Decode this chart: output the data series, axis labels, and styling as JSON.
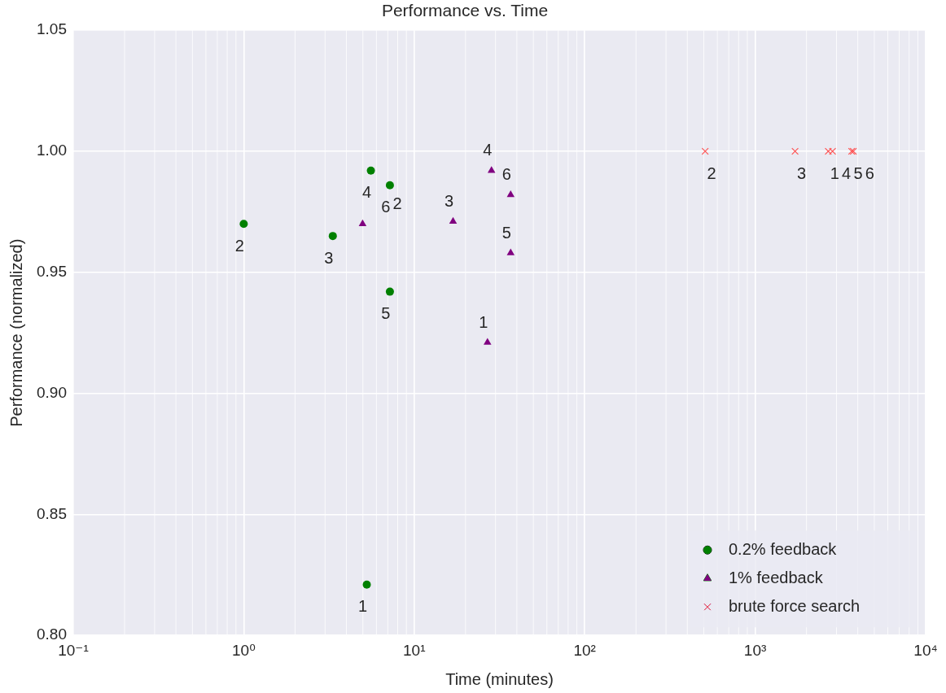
{
  "chart_data": {
    "type": "scatter",
    "title": "Performance vs. Time",
    "xlabel": "Time (minutes)",
    "ylabel": "Performance (normalized)",
    "log": "x",
    "grid": true,
    "legend": "bottom right",
    "xlim": [
      0.1,
      10000
    ],
    "xticks": [
      {
        "value": 0.1,
        "label": "10⁻¹"
      },
      {
        "value": 1,
        "label": "10⁰"
      },
      {
        "value": 10,
        "label": "10¹"
      },
      {
        "value": 100,
        "label": "10²"
      },
      {
        "value": 1000,
        "label": "10³"
      },
      {
        "value": 10000,
        "label": "10⁴"
      }
    ],
    "ylim": [
      0.8,
      1.05
    ],
    "yticks": [
      {
        "value": 0.8,
        "label": "0.80"
      },
      {
        "value": 0.85,
        "label": "0.85"
      },
      {
        "value": 0.9,
        "label": "0.90"
      },
      {
        "value": 0.95,
        "label": "0.95"
      },
      {
        "value": 1,
        "label": "1.00"
      },
      {
        "value": 1.05,
        "label": "1.05"
      }
    ],
    "series": [
      {
        "name": "0.2% feedback",
        "color": "#008000",
        "marker": "circle",
        "x": [
          5.27,
          1.0,
          3.33,
          5.57,
          7.2,
          7.2
        ],
        "values": [
          0.821,
          0.97,
          0.965,
          0.992,
          0.942,
          0.986
        ]
      },
      {
        "name": "1% feedback",
        "color": "#800080",
        "marker": "triangle",
        "x": [
          26.9,
          4.98,
          16.9,
          28.4,
          36.8,
          36.8
        ],
        "values": [
          0.921,
          0.97,
          0.971,
          0.992,
          0.958,
          0.982
        ]
      },
      {
        "name": "brute force search",
        "color": "#ff5555",
        "marker": "cross",
        "x": [
          2685,
          509,
          1714,
          2843,
          3680,
          3765
        ],
        "values": [
          1.0,
          1.0,
          1.0,
          1.0,
          1.0,
          1.0
        ]
      }
    ],
    "annotations": [
      {
        "text": "1",
        "x": 5.27,
        "y": 0.821
      },
      {
        "text": "2",
        "x": 1.0,
        "y": 0.97
      },
      {
        "text": "3",
        "x": 3.33,
        "y": 0.965
      },
      {
        "text": "4",
        "x": 5.57,
        "y": 0.992
      },
      {
        "text": "5",
        "x": 7.2,
        "y": 0.942
      },
      {
        "text": "6",
        "x": 7.2,
        "y": 0.986
      },
      {
        "text": "1",
        "x": 26.9,
        "y": 0.921
      },
      {
        "text": "2",
        "x": 4.98,
        "y": 0.97
      },
      {
        "text": "3",
        "x": 16.9,
        "y": 0.971
      },
      {
        "text": "4",
        "x": 28.4,
        "y": 0.992
      },
      {
        "text": "5",
        "x": 36.8,
        "y": 0.958
      },
      {
        "text": "6",
        "x": 36.8,
        "y": 0.982
      },
      {
        "text": "1",
        "x": 2685,
        "y": 1.0
      },
      {
        "text": "2",
        "x": 509,
        "y": 1.0
      },
      {
        "text": "3",
        "x": 1714,
        "y": 1.0
      },
      {
        "text": "4",
        "x": 2843,
        "y": 1.0
      },
      {
        "text": "5",
        "x": 3680,
        "y": 1.0
      },
      {
        "text": "6",
        "x": 3765,
        "y": 1.0
      }
    ]
  }
}
